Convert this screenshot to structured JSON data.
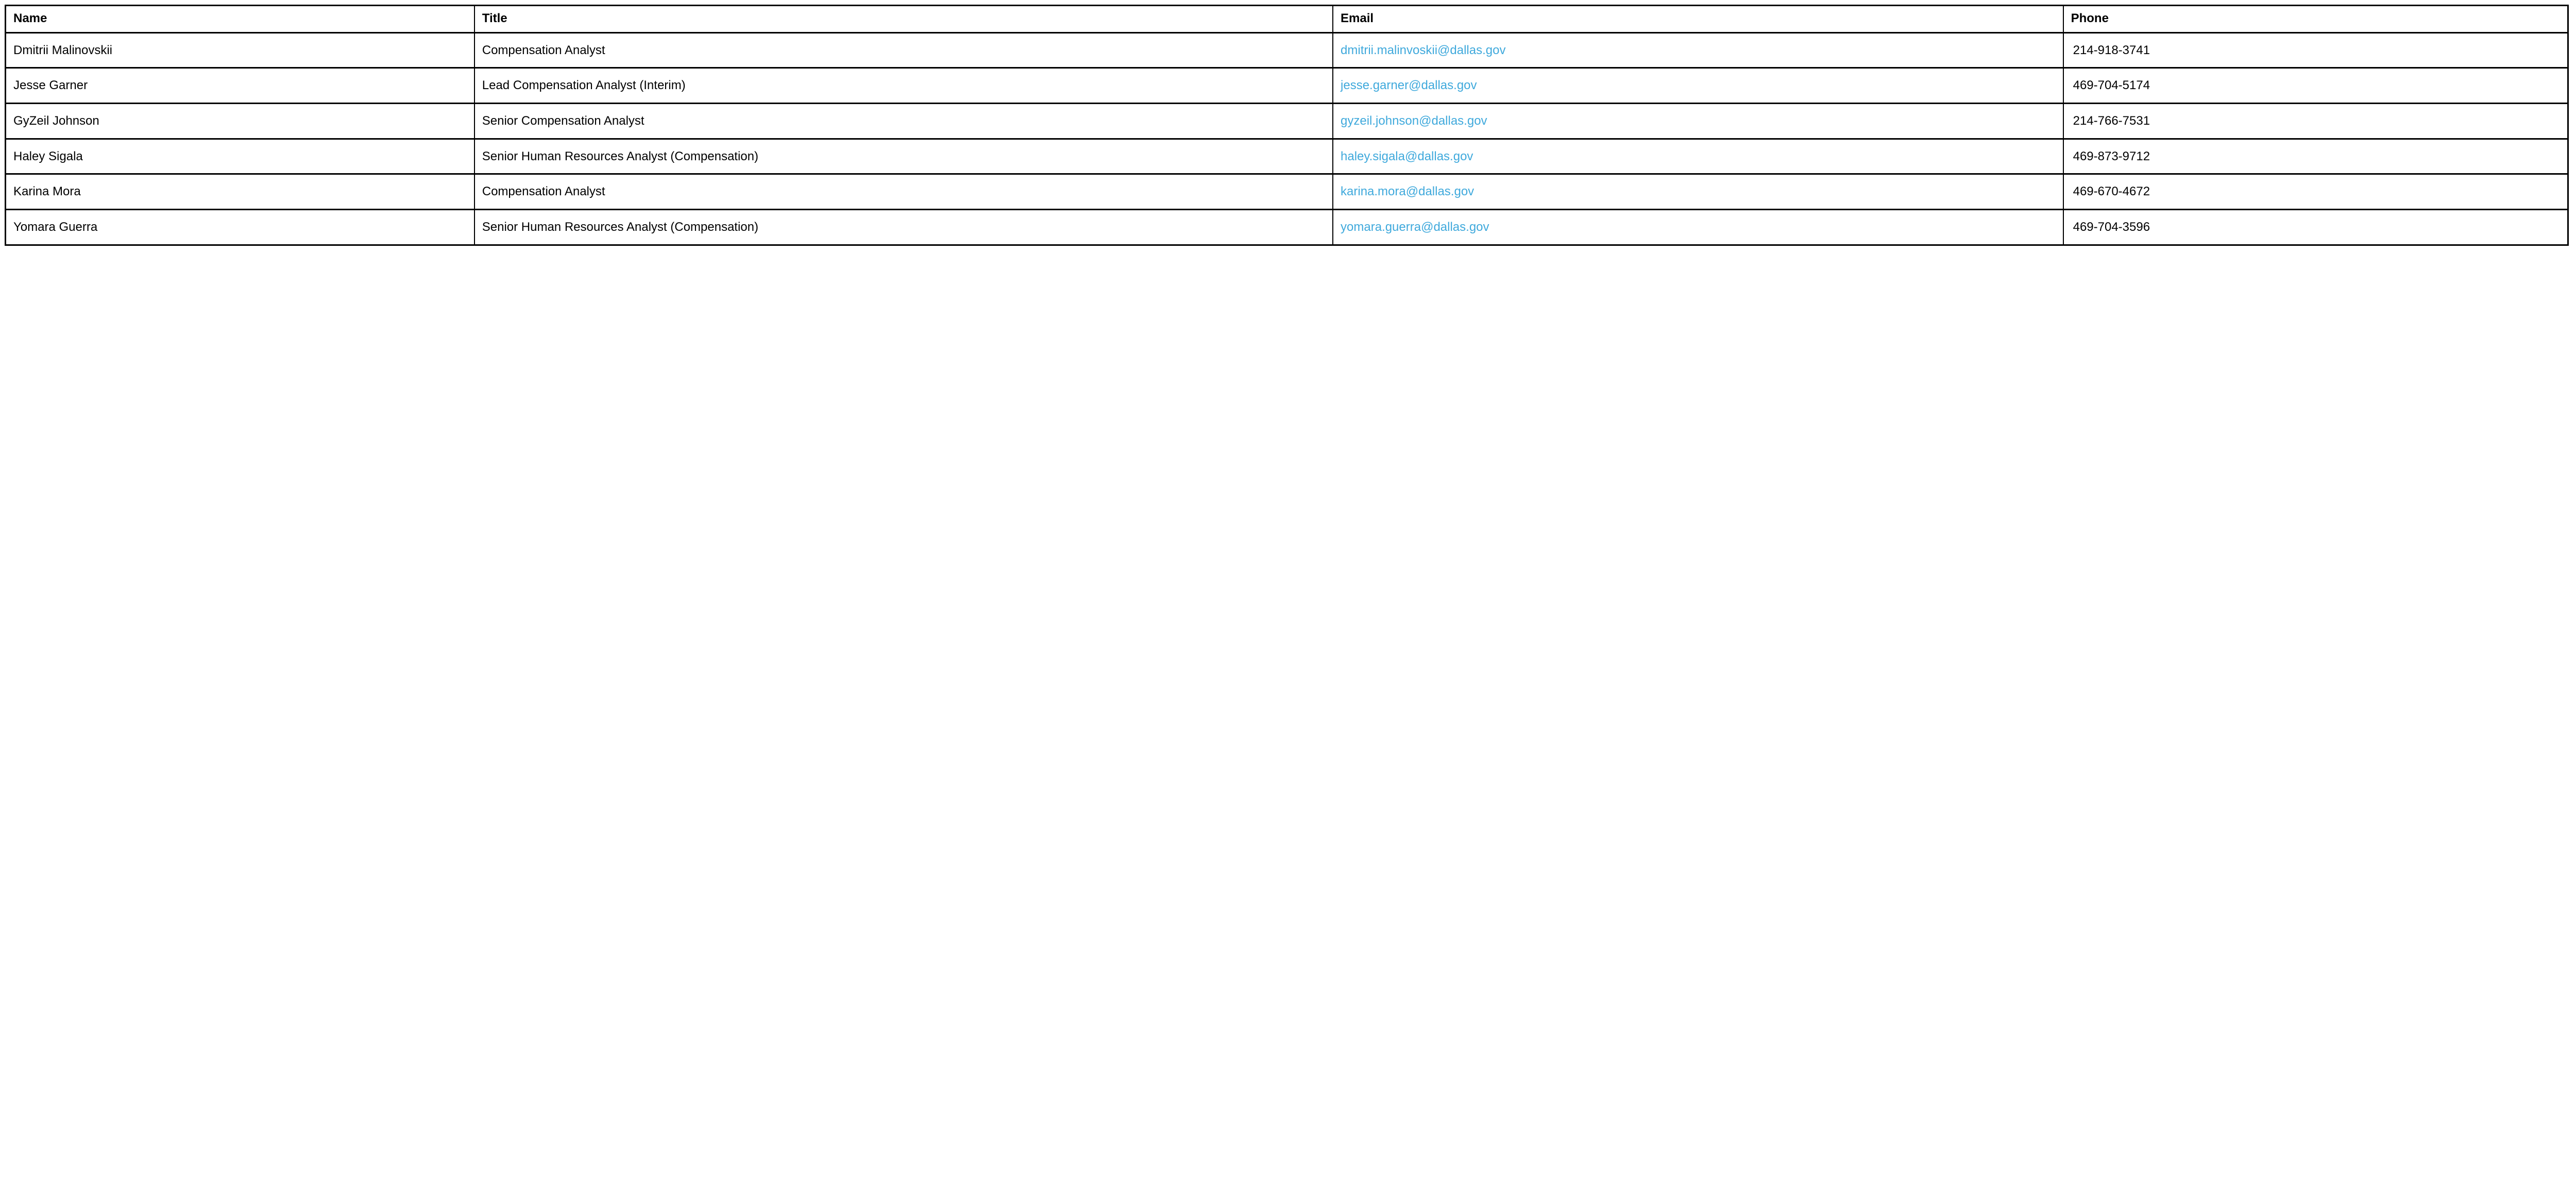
{
  "table": {
    "colors": {
      "link": "#3FA9DC",
      "text": "#000000",
      "border": "#000000",
      "background": "#FFFFFF"
    },
    "columns": [
      {
        "label": "Name"
      },
      {
        "label": "Title"
      },
      {
        "label": "Email"
      },
      {
        "label": "Phone"
      }
    ],
    "rows": [
      {
        "name": "Dmitrii Malinovskii",
        "title": "Compensation Analyst",
        "email": "dmitrii.malinvoskii@dallas.gov",
        "phone": "214-918-3741"
      },
      {
        "name": "Jesse Garner",
        "title": "Lead Compensation Analyst (Interim)",
        "email": "jesse.garner@dallas.gov",
        "phone": "469-704-5174"
      },
      {
        "name": "GyZeil Johnson",
        "title": "Senior Compensation Analyst",
        "email": "gyzeil.johnson@dallas.gov",
        "phone": "214-766-7531"
      },
      {
        "name": "Haley Sigala",
        "title": "Senior Human Resources Analyst (Compensation)",
        "email": "haley.sigala@dallas.gov",
        "phone": "469-873-9712"
      },
      {
        "name": "Karina Mora",
        "title": "Compensation Analyst",
        "email": "karina.mora@dallas.gov",
        "phone": "469-670-4672"
      },
      {
        "name": "Yomara Guerra",
        "title": "Senior Human Resources Analyst (Compensation)",
        "email": "yomara.guerra@dallas.gov",
        "phone": "469-704-3596"
      }
    ]
  }
}
